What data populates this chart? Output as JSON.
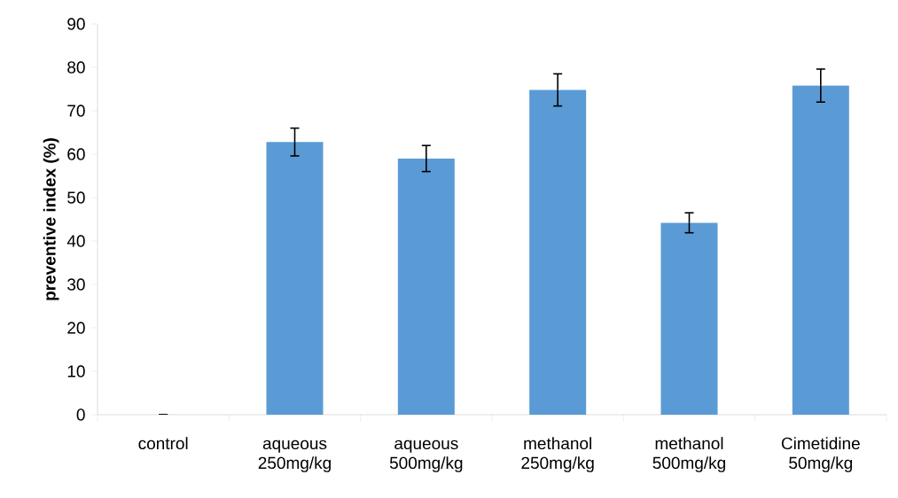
{
  "chart_data": {
    "type": "bar",
    "ylabel": "preventive index (%)",
    "categories": [
      "control",
      "aqueous 250mg/kg",
      "aqueous 500mg/kg",
      "methanol 250mg/kg",
      "methanol 500mg/kg",
      "Cimetidine 50mg/kg"
    ],
    "values": [
      0,
      62.8,
      59.0,
      74.8,
      44.2,
      75.8
    ],
    "errors": [
      0,
      3.2,
      3.0,
      3.7,
      2.3,
      3.8
    ],
    "color": "#5b9bd5",
    "ylim": [
      0,
      90
    ],
    "yticks": [
      0,
      10,
      20,
      30,
      40,
      50,
      60,
      70,
      80,
      90
    ],
    "grid": false
  }
}
